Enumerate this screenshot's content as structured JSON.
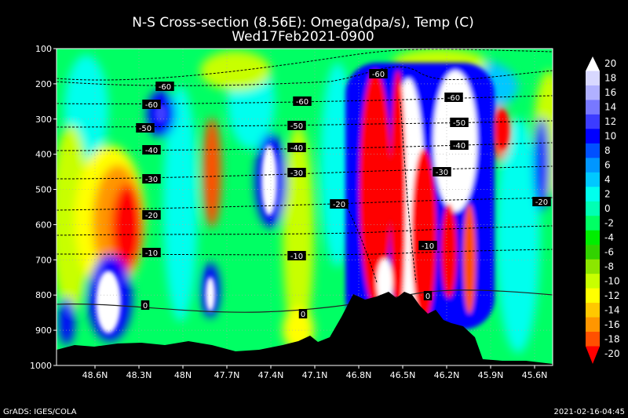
{
  "chart_data": {
    "type": "heatmap",
    "title": "N-S Cross-section (8.56E): Omega(dpa/s), Temp (C)",
    "subtitle": "Wed17Feb2021-0900",
    "x_tick_labels": [
      "48.6N",
      "48.3N",
      "48N",
      "47.7N",
      "47.4N",
      "47.1N",
      "46.8N",
      "46.5N",
      "46.2N",
      "45.9N",
      "45.6N"
    ],
    "y_tick_labels": [
      "100",
      "200",
      "300",
      "400",
      "500",
      "600",
      "700",
      "800",
      "900",
      "1000"
    ],
    "y_axis_orientation": "pressure decreasing upward",
    "colorbar": {
      "labels": [
        "20",
        "18",
        "16",
        "14",
        "12",
        "10",
        "8",
        "6",
        "4",
        "2",
        "0",
        "-2",
        "-4",
        "-6",
        "-8",
        "-10",
        "-12",
        "-14",
        "-16",
        "-18",
        "-20"
      ],
      "colors": [
        "#ffffff",
        "#d8d8ff",
        "#b0b0ff",
        "#7878ff",
        "#3c3cff",
        "#0000ff",
        "#0050ff",
        "#0096ff",
        "#00c8ff",
        "#00ffee",
        "#00ffb4",
        "#00ff64",
        "#00ee00",
        "#32d200",
        "#8ce600",
        "#c8ff00",
        "#ffff00",
        "#ffc800",
        "#ff9600",
        "#ff5000",
        "#ff0000"
      ]
    },
    "temperature_contour_labels": [
      "-60",
      "-60",
      "-60",
      "-60",
      "-60",
      "-50",
      "-50",
      "-50",
      "-40",
      "-40",
      "-40",
      "-30",
      "-30",
      "-30",
      "-20",
      "-20",
      "-20",
      "-10",
      "-10",
      "-10",
      "0",
      "0",
      "0"
    ],
    "terrain_color": "#000000"
  },
  "footer": {
    "left": "GrADS: IGES/COLA",
    "right": "2021-02-16-04:45"
  }
}
